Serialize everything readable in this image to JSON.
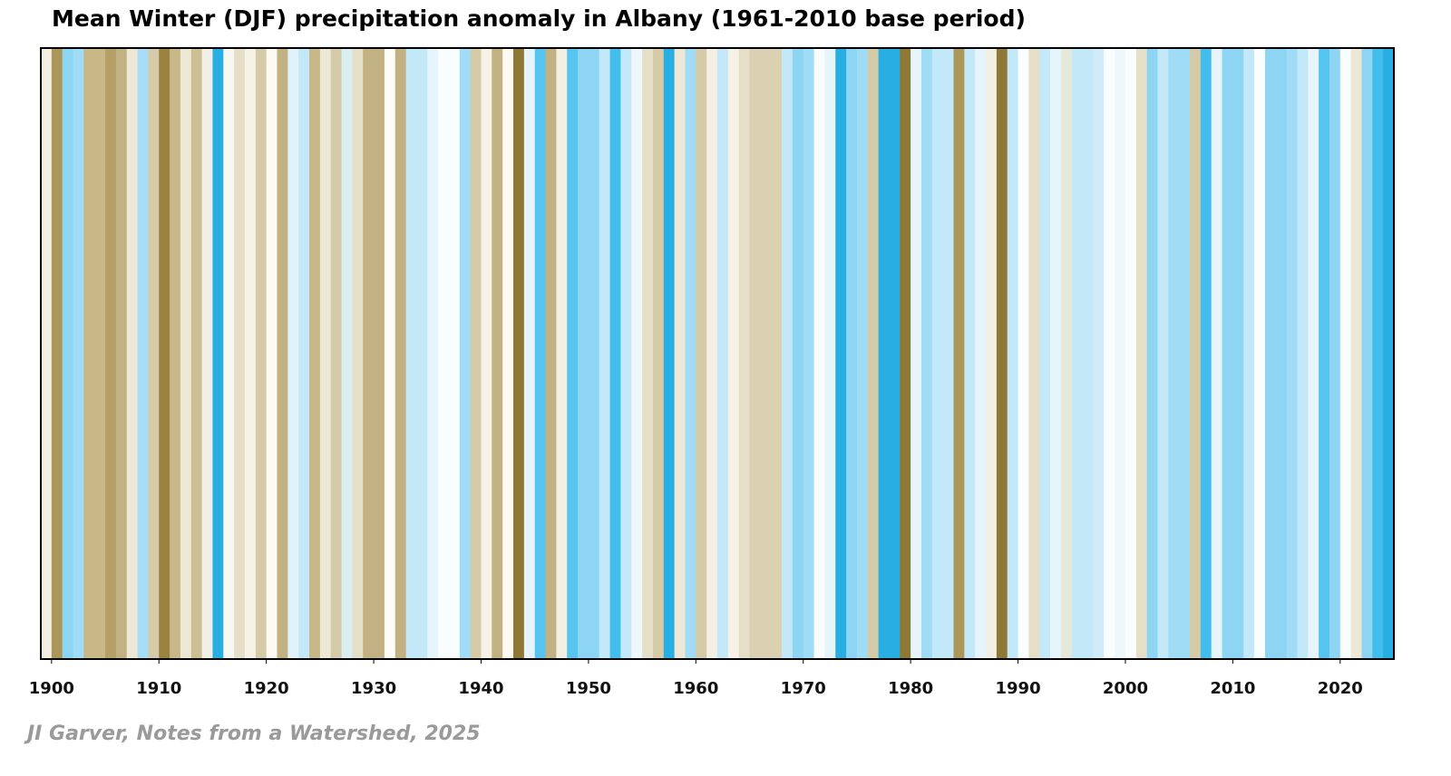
{
  "chart_data": {
    "type": "stripes",
    "title": "Mean Winter (DJF) precipitation anomaly in Albany  (1961-2010 base period)",
    "credit": "JI Garver, Notes from a Watershed, 2025",
    "x": [
      1899,
      1900,
      1901,
      1902,
      1903,
      1904,
      1905,
      1906,
      1907,
      1908,
      1909,
      1910,
      1911,
      1912,
      1913,
      1914,
      1915,
      1916,
      1917,
      1918,
      1919,
      1920,
      1921,
      1922,
      1923,
      1924,
      1925,
      1926,
      1927,
      1928,
      1929,
      1930,
      1931,
      1932,
      1933,
      1934,
      1935,
      1936,
      1937,
      1938,
      1939,
      1940,
      1941,
      1942,
      1943,
      1944,
      1945,
      1946,
      1947,
      1948,
      1949,
      1950,
      1951,
      1952,
      1953,
      1954,
      1955,
      1956,
      1957,
      1958,
      1959,
      1960,
      1961,
      1962,
      1963,
      1964,
      1965,
      1966,
      1967,
      1968,
      1969,
      1970,
      1971,
      1972,
      1973,
      1974,
      1975,
      1976,
      1977,
      1978,
      1979,
      1980,
      1981,
      1982,
      1983,
      1984,
      1985,
      1986,
      1987,
      1988,
      1989,
      1990,
      1991,
      1992,
      1993,
      1994,
      1995,
      1996,
      1997,
      1998,
      1999,
      2000,
      2001,
      2002,
      2003,
      2004,
      2005,
      2006,
      2007,
      2008,
      2009,
      2010,
      2011,
      2012,
      2013,
      2014,
      2015,
      2016,
      2017,
      2018,
      2019,
      2020,
      2021,
      2022,
      2023,
      2024
    ],
    "colors": [
      "#f3efe3",
      "#ab9758",
      "#8dd5f3",
      "#a0dcf5",
      "#c8b888",
      "#c8b888",
      "#b4a066",
      "#c2b182",
      "#ede8d6",
      "#a8def5",
      "#d6cba8",
      "#9a8240",
      "#c8b888",
      "#ede8d6",
      "#cdbf94",
      "#f0f0e8",
      "#29aee3",
      "#f8f8f2",
      "#e6dfc8",
      "#f6f2e6",
      "#d6cba8",
      "#fcfaf2",
      "#c2b182",
      "#e0f2fa",
      "#c3e8f8",
      "#c8b888",
      "#ede8d6",
      "#d6cba8",
      "#d8eef0",
      "#e6dfc8",
      "#c2b182",
      "#c2b182",
      "#fdfcf6",
      "#c2b182",
      "#c3e8f8",
      "#c3e8f8",
      "#e6f5fb",
      "#fafdfe",
      "#fafdfe",
      "#a0dcf5",
      "#d6cba8",
      "#f6f2e6",
      "#c2b182",
      "#fcfaf2",
      "#8f7836",
      "#e6f5fb",
      "#55c5ef",
      "#c2b182",
      "#f3efe3",
      "#55c5ef",
      "#8dd5f3",
      "#8dd5f3",
      "#c3e8f8",
      "#43bdec",
      "#c3e8f8",
      "#eef8fc",
      "#e6dfc8",
      "#d6cba8",
      "#29aee3",
      "#ede8d6",
      "#a0dcf5",
      "#d6cba8",
      "#f3efe3",
      "#c3e8f8",
      "#f6f2e6",
      "#e6dfc8",
      "#dad1b3",
      "#dad1b3",
      "#dad1b3",
      "#c3e8f8",
      "#8dd5f3",
      "#a0dcf5",
      "#fafdfe",
      "#e6f5fb",
      "#29aee3",
      "#8dd5f3",
      "#a0dcf5",
      "#d6cba8",
      "#29aee3",
      "#29aee3",
      "#8f7836",
      "#e6f5fb",
      "#a0dcf5",
      "#c3e8f8",
      "#c3e8f8",
      "#ab9758",
      "#c3e8f8",
      "#e6f5fb",
      "#f3efe3",
      "#8f7836",
      "#c3e8f8",
      "#fafdfe",
      "#e6dfc8",
      "#c3e8f8",
      "#e6f5fb",
      "#e6e8dc",
      "#c3e8f8",
      "#c3e8f8",
      "#d0ecf8",
      "#fafdfe",
      "#eef8fc",
      "#fafdfe",
      "#e6dfc8",
      "#8dd5f3",
      "#c3e8f8",
      "#a0dcf5",
      "#a0dcf5",
      "#d6cba8",
      "#43bdec",
      "#e6f5fb",
      "#8dd5f3",
      "#8dd5f3",
      "#c3e8f8",
      "#fafdfe",
      "#8dd5f3",
      "#8dd5f3",
      "#a0dcf5",
      "#c3e8f8",
      "#e6f5fb",
      "#55c5ef",
      "#8dd5f3",
      "#fafdfe",
      "#ede8d6",
      "#8dd5f3",
      "#43bdec",
      "#29aee3"
    ],
    "xlim": [
      1899,
      2025
    ],
    "xticks": [
      1900,
      1910,
      1920,
      1930,
      1940,
      1950,
      1960,
      1970,
      1980,
      1990,
      2000,
      2010,
      2020
    ]
  }
}
